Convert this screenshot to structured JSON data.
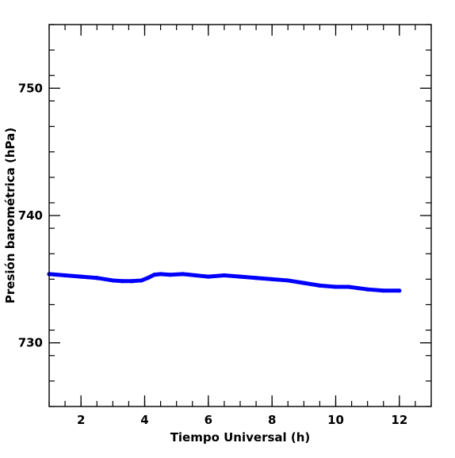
{
  "chart_data": {
    "type": "line",
    "xlabel": "Tiempo Universal (h)",
    "ylabel": "Presión barométrica (hPa)",
    "xlim": [
      1,
      13
    ],
    "ylim": [
      725,
      755
    ],
    "x_ticks": [
      2,
      4,
      6,
      8,
      10,
      12
    ],
    "y_ticks": [
      730,
      740,
      750
    ],
    "x_tick_labels": [
      "2",
      "4",
      "6",
      "8",
      "10",
      "12"
    ],
    "y_tick_labels": [
      "730",
      "740",
      "750"
    ],
    "x_minor_step": 0.5,
    "y_minor_step": 2,
    "grid": false,
    "series": [
      {
        "color": "#0000ff",
        "x": [
          1.0,
          1.5,
          2.0,
          2.5,
          3.0,
          3.3,
          3.6,
          3.9,
          4.1,
          4.3,
          4.5,
          4.8,
          5.2,
          5.6,
          6.0,
          6.5,
          7.0,
          7.5,
          8.0,
          8.5,
          9.0,
          9.5,
          10.0,
          10.4,
          10.7,
          11.0,
          11.5,
          12.0
        ],
        "y": [
          735.4,
          735.3,
          735.2,
          735.1,
          734.9,
          734.85,
          734.85,
          734.9,
          735.1,
          735.35,
          735.4,
          735.35,
          735.4,
          735.3,
          735.2,
          735.3,
          735.2,
          735.1,
          735.0,
          734.9,
          734.7,
          734.5,
          734.4,
          734.4,
          734.3,
          734.2,
          734.1,
          734.1
        ]
      }
    ]
  }
}
